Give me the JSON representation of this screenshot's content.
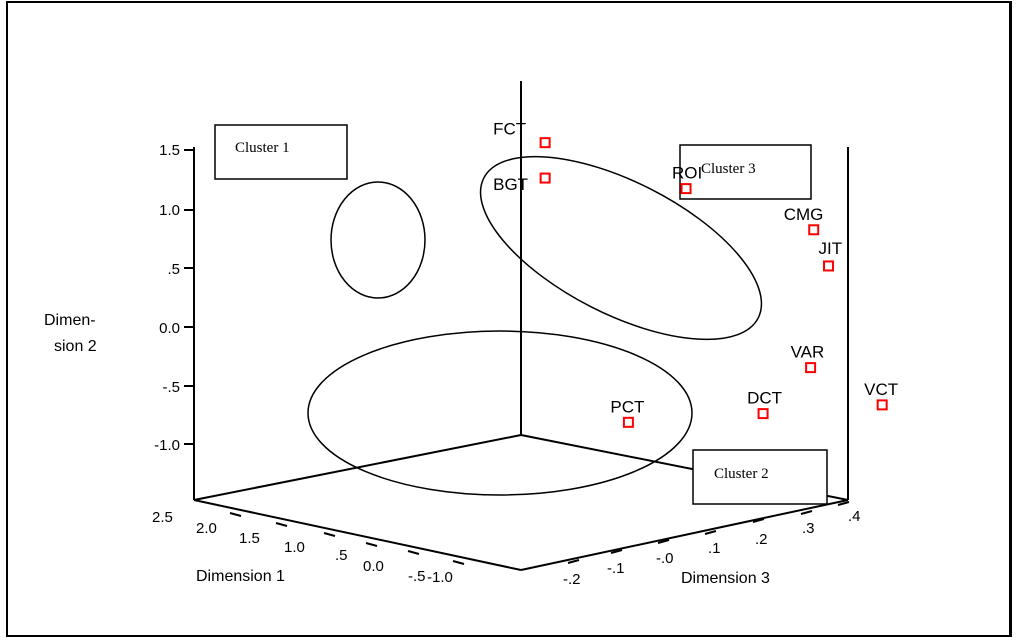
{
  "chart_data": {
    "type": "scatter",
    "subtype": "3d-scatter",
    "title": "",
    "xlabel": "Dimension 1",
    "ylabel": "Dimension 2",
    "zlabel": "Dimension 3",
    "ylabel_lines": [
      "Dimen-",
      "sion 2"
    ],
    "x_ticks": [
      "2.5",
      "2.0",
      "1.5",
      "1.0",
      ".5",
      "0.0",
      "-.5",
      "-1.0"
    ],
    "y_ticks": [
      "1.5",
      "1.0",
      ".5",
      "0.0",
      "-.5",
      "-1.0"
    ],
    "z_ticks": [
      ".4",
      ".3",
      ".2",
      ".1",
      "-.0",
      "-.1",
      "-.2"
    ],
    "grid": false,
    "marker_color": "#ff0000",
    "points": [
      {
        "label": "FCT",
        "x": -0.9,
        "y": 1.3,
        "z": -0.19
      },
      {
        "label": "BGT",
        "x": -0.9,
        "y": 1.0,
        "z": -0.19
      },
      {
        "label": "ROI",
        "x": -0.5,
        "y": 0.8,
        "z": 0.0
      },
      {
        "label": "CMG",
        "x": -0.3,
        "y": 0.3,
        "z": 0.2
      },
      {
        "label": "JIT",
        "x": -0.2,
        "y": 0.0,
        "z": 0.21
      },
      {
        "label": "PCT",
        "x": 0.4,
        "y": -0.8,
        "z": -0.26
      },
      {
        "label": "VAR",
        "x": -0.1,
        "y": -0.8,
        "z": 0.16
      },
      {
        "label": "DCT",
        "x": 1.2,
        "y": -0.7,
        "z": -0.15
      },
      {
        "label": "VCT",
        "x": 1.6,
        "y": -0.7,
        "z": 0.0
      }
    ],
    "annotations": [
      "Cluster 1",
      "Cluster 3",
      "Cluster 2"
    ]
  }
}
